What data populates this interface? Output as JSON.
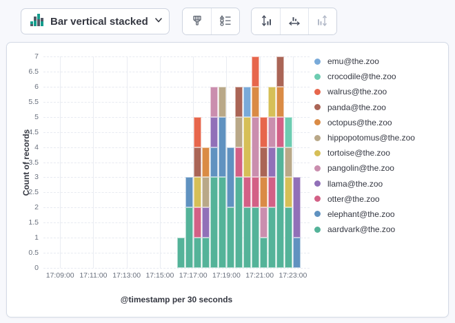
{
  "toolbar": {
    "chart_type_button": {
      "label": "Bar vertical stacked"
    },
    "buttons": [
      {
        "name": "palette-button",
        "enabled": true
      },
      {
        "name": "legend-settings-button",
        "enabled": true
      },
      {
        "name": "left-axis-button",
        "enabled": true
      },
      {
        "name": "bottom-axis-button",
        "enabled": true
      },
      {
        "name": "right-axis-button",
        "enabled": false
      }
    ]
  },
  "chart_data": {
    "type": "bar",
    "stacked": true,
    "ylabel": "Count of records",
    "xlabel": "@timestamp per 30 seconds",
    "ylim": [
      0,
      7
    ],
    "y_tick_step": 0.5,
    "grid": true,
    "legend_position": "right",
    "x_start": "17:08:00",
    "x_end": "17:24:00",
    "bucket_seconds": 30,
    "x_ticks": [
      "17:09:00",
      "17:11:00",
      "17:13:00",
      "17:15:00",
      "17:17:00",
      "17:19:00",
      "17:21:00",
      "17:23:00"
    ],
    "legend": [
      {
        "label": "emu@the.zoo",
        "color": "#79AAD9"
      },
      {
        "label": "crocodile@the.zoo",
        "color": "#6DCCB1"
      },
      {
        "label": "walrus@the.zoo",
        "color": "#E7664C"
      },
      {
        "label": "panda@the.zoo",
        "color": "#AA6556"
      },
      {
        "label": "octopus@the.zoo",
        "color": "#DA8B45"
      },
      {
        "label": "hippopotomus@the.zoo",
        "color": "#B9A888"
      },
      {
        "label": "tortoise@the.zoo",
        "color": "#D6BF57"
      },
      {
        "label": "pangolin@the.zoo",
        "color": "#CA8EAE"
      },
      {
        "label": "llama@the.zoo",
        "color": "#9170B8"
      },
      {
        "label": "otter@the.zoo",
        "color": "#D36086"
      },
      {
        "label": "elephant@the.zoo",
        "color": "#6092C0"
      },
      {
        "label": "aardvark@the.zoo",
        "color": "#54B399"
      }
    ],
    "buckets": [
      {
        "time": "17:16:00",
        "total": 1,
        "segments": [
          [
            "aardvark@the.zoo",
            1
          ]
        ]
      },
      {
        "time": "17:16:30",
        "total": 3,
        "segments": [
          [
            "aardvark@the.zoo",
            2
          ],
          [
            "elephant@the.zoo",
            1
          ]
        ]
      },
      {
        "time": "17:17:00",
        "total": 5,
        "segments": [
          [
            "aardvark@the.zoo",
            1
          ],
          [
            "otter@the.zoo",
            1
          ],
          [
            "tortoise@the.zoo",
            1
          ],
          [
            "panda@the.zoo",
            1
          ],
          [
            "walrus@the.zoo",
            1
          ]
        ]
      },
      {
        "time": "17:17:30",
        "total": 4,
        "segments": [
          [
            "aardvark@the.zoo",
            1
          ],
          [
            "llama@the.zoo",
            1
          ],
          [
            "hippopotomus@the.zoo",
            1
          ],
          [
            "octopus@the.zoo",
            1
          ]
        ]
      },
      {
        "time": "17:18:00",
        "total": 6,
        "segments": [
          [
            "aardvark@the.zoo",
            3
          ],
          [
            "elephant@the.zoo",
            1
          ],
          [
            "llama@the.zoo",
            1
          ],
          [
            "pangolin@the.zoo",
            1
          ]
        ]
      },
      {
        "time": "17:18:30",
        "total": 6,
        "segments": [
          [
            "aardvark@the.zoo",
            3
          ],
          [
            "elephant@the.zoo",
            2
          ],
          [
            "hippopotomus@the.zoo",
            1
          ]
        ]
      },
      {
        "time": "17:19:00",
        "total": 4,
        "segments": [
          [
            "aardvark@the.zoo",
            2
          ],
          [
            "elephant@the.zoo",
            2
          ]
        ]
      },
      {
        "time": "17:19:30",
        "total": 6,
        "segments": [
          [
            "aardvark@the.zoo",
            3
          ],
          [
            "otter@the.zoo",
            1
          ],
          [
            "hippopotomus@the.zoo",
            1
          ],
          [
            "panda@the.zoo",
            1
          ]
        ]
      },
      {
        "time": "17:20:00",
        "total": 6,
        "segments": [
          [
            "aardvark@the.zoo",
            2
          ],
          [
            "otter@the.zoo",
            1
          ],
          [
            "tortoise@the.zoo",
            2
          ],
          [
            "emu@the.zoo",
            1
          ]
        ]
      },
      {
        "time": "17:20:30",
        "total": 7,
        "segments": [
          [
            "aardvark@the.zoo",
            2
          ],
          [
            "otter@the.zoo",
            1
          ],
          [
            "pangolin@the.zoo",
            2
          ],
          [
            "octopus@the.zoo",
            1
          ],
          [
            "walrus@the.zoo",
            1
          ]
        ]
      },
      {
        "time": "17:21:00",
        "total": 5,
        "segments": [
          [
            "aardvark@the.zoo",
            1
          ],
          [
            "pangolin@the.zoo",
            1
          ],
          [
            "octopus@the.zoo",
            1
          ],
          [
            "panda@the.zoo",
            1
          ],
          [
            "walrus@the.zoo",
            1
          ]
        ]
      },
      {
        "time": "17:21:30",
        "total": 6,
        "segments": [
          [
            "aardvark@the.zoo",
            2
          ],
          [
            "otter@the.zoo",
            1
          ],
          [
            "llama@the.zoo",
            1
          ],
          [
            "pangolin@the.zoo",
            1
          ],
          [
            "tortoise@the.zoo",
            1
          ]
        ]
      },
      {
        "time": "17:22:00",
        "total": 7,
        "segments": [
          [
            "aardvark@the.zoo",
            4
          ],
          [
            "otter@the.zoo",
            1
          ],
          [
            "octopus@the.zoo",
            1
          ],
          [
            "panda@the.zoo",
            1
          ]
        ]
      },
      {
        "time": "17:22:30",
        "total": 5,
        "segments": [
          [
            "aardvark@the.zoo",
            2
          ],
          [
            "tortoise@the.zoo",
            1
          ],
          [
            "hippopotomus@the.zoo",
            1
          ],
          [
            "crocodile@the.zoo",
            1
          ]
        ]
      },
      {
        "time": "17:23:00",
        "total": 3,
        "segments": [
          [
            "elephant@the.zoo",
            1
          ],
          [
            "llama@the.zoo",
            2
          ]
        ]
      }
    ]
  }
}
